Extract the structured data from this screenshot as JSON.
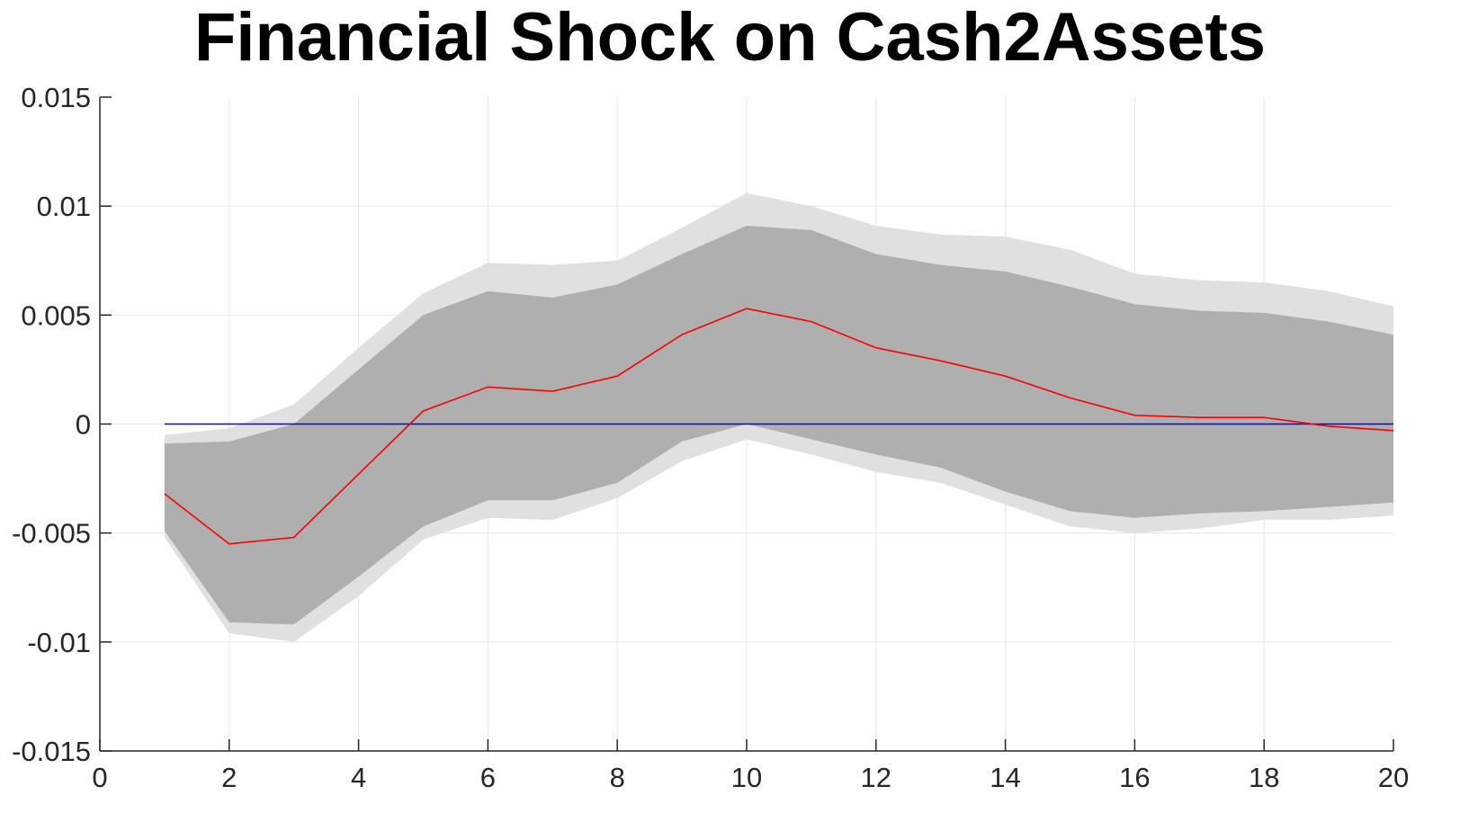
{
  "chart_data": {
    "type": "area",
    "title": "Financial Shock on Cash2Assets",
    "xlabel": "",
    "ylabel": "",
    "xlim": [
      0,
      20
    ],
    "ylim": [
      -0.015,
      0.015
    ],
    "grid": true,
    "x_ticks": [
      0,
      2,
      4,
      6,
      8,
      10,
      12,
      14,
      16,
      18,
      20
    ],
    "x_tick_labels": [
      "0",
      "2",
      "4",
      "6",
      "8",
      "10",
      "12",
      "14",
      "16",
      "18",
      "20"
    ],
    "y_ticks": [
      -0.015,
      -0.01,
      -0.005,
      0,
      0.005,
      0.01,
      0.015
    ],
    "y_tick_labels": [
      "-0.015",
      "-0.01",
      "-0.005",
      "0",
      "0.005",
      "0.01",
      "0.015"
    ],
    "x": [
      1,
      2,
      3,
      4,
      5,
      6,
      7,
      8,
      9,
      10,
      11,
      12,
      13,
      14,
      15,
      16,
      17,
      18,
      19,
      20
    ],
    "series": [
      {
        "role": "outer-band",
        "color": "#e0e0e0",
        "upper": [
          -0.0005,
          -0.0002,
          0.0009,
          0.0035,
          0.006,
          0.0074,
          0.0073,
          0.0075,
          0.009,
          0.0106,
          0.01,
          0.0091,
          0.0087,
          0.0086,
          0.008,
          0.0069,
          0.0066,
          0.0065,
          0.0061,
          0.0054
        ],
        "lower": [
          -0.0052,
          -0.0096,
          -0.01,
          -0.0079,
          -0.0053,
          -0.0043,
          -0.0044,
          -0.0034,
          -0.0017,
          -0.0007,
          -0.0014,
          -0.0022,
          -0.0027,
          -0.0037,
          -0.0047,
          -0.005,
          -0.0048,
          -0.0044,
          -0.0044,
          -0.0042
        ]
      },
      {
        "role": "inner-band",
        "color": "#afafaf",
        "upper": [
          -0.0009,
          -0.0008,
          0.0,
          0.0025,
          0.005,
          0.0061,
          0.0058,
          0.0064,
          0.0078,
          0.0091,
          0.0089,
          0.0078,
          0.0073,
          0.007,
          0.0063,
          0.0055,
          0.0052,
          0.0051,
          0.0047,
          0.0041
        ],
        "lower": [
          -0.0049,
          -0.0091,
          -0.0092,
          -0.007,
          -0.0047,
          -0.0035,
          -0.0035,
          -0.0027,
          -0.0008,
          0.0,
          -0.0007,
          -0.0014,
          -0.002,
          -0.0031,
          -0.004,
          -0.0043,
          -0.0041,
          -0.004,
          -0.0038,
          -0.0036
        ]
      },
      {
        "role": "zero-line",
        "color": "#0000ff",
        "values": [
          0,
          0,
          0,
          0,
          0,
          0,
          0,
          0,
          0,
          0,
          0,
          0,
          0,
          0,
          0,
          0,
          0,
          0,
          0,
          0
        ]
      },
      {
        "role": "median",
        "color": "#ff0000",
        "values": [
          -0.0032,
          -0.0055,
          -0.0052,
          -0.0023,
          0.0006,
          0.0017,
          0.0015,
          0.0022,
          0.0041,
          0.0053,
          0.0047,
          0.0035,
          0.0029,
          0.0022,
          0.0012,
          0.0004,
          0.0003,
          0.0003,
          -0.0001,
          -0.0003
        ]
      }
    ],
    "colors": {
      "grid": "#e6e6e6",
      "axis": "#262626"
    }
  }
}
